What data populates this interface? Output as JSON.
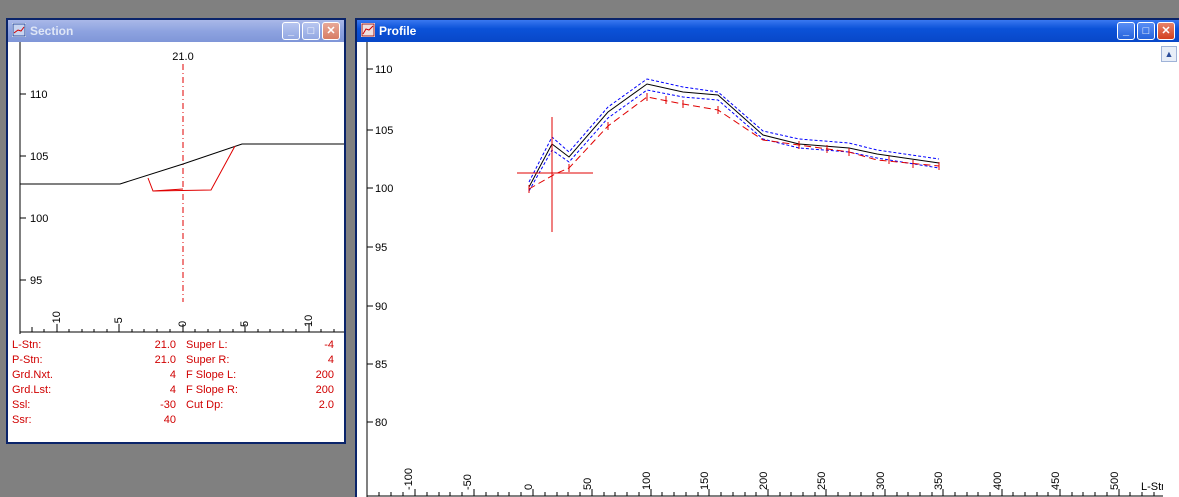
{
  "section_window": {
    "title": "Section",
    "station_label": "21.0",
    "y_ticks": [
      "110",
      "105",
      "100",
      "95"
    ],
    "x_ticks": [
      "-10",
      "-5",
      "0",
      "5",
      "10"
    ],
    "info": [
      {
        "label": "L-Stn:",
        "value": "21.0",
        "label2": "Super L:",
        "value2": "-4"
      },
      {
        "label": "P-Stn:",
        "value": "21.0",
        "label2": "Super R:",
        "value2": "4"
      },
      {
        "label": "Grd.Nxt.",
        "value": "4",
        "label2": "F Slope L:",
        "value2": "200"
      },
      {
        "label": "Grd.Lst:",
        "value": "4",
        "label2": "F Slope R:",
        "value2": "200"
      },
      {
        "label": "Ssl:",
        "value": "-30",
        "label2": "Cut Dp:",
        "value2": "2.0"
      },
      {
        "label": "Ssr:",
        "value": "40",
        "label2": "",
        "value2": ""
      }
    ]
  },
  "profile_window": {
    "title": "Profile",
    "y_ticks": [
      "110",
      "105",
      "100",
      "95",
      "90",
      "85",
      "80"
    ],
    "x_ticks": [
      "-100",
      "-50",
      "0",
      "50",
      "100",
      "150",
      "200",
      "250",
      "300",
      "350",
      "400",
      "450",
      "500"
    ],
    "x_axis_label": "L-Stn"
  },
  "colors": {
    "ground": "#000000",
    "design": "#e00000",
    "offset": "#0000ff",
    "title_active": "#0b52d8"
  }
}
